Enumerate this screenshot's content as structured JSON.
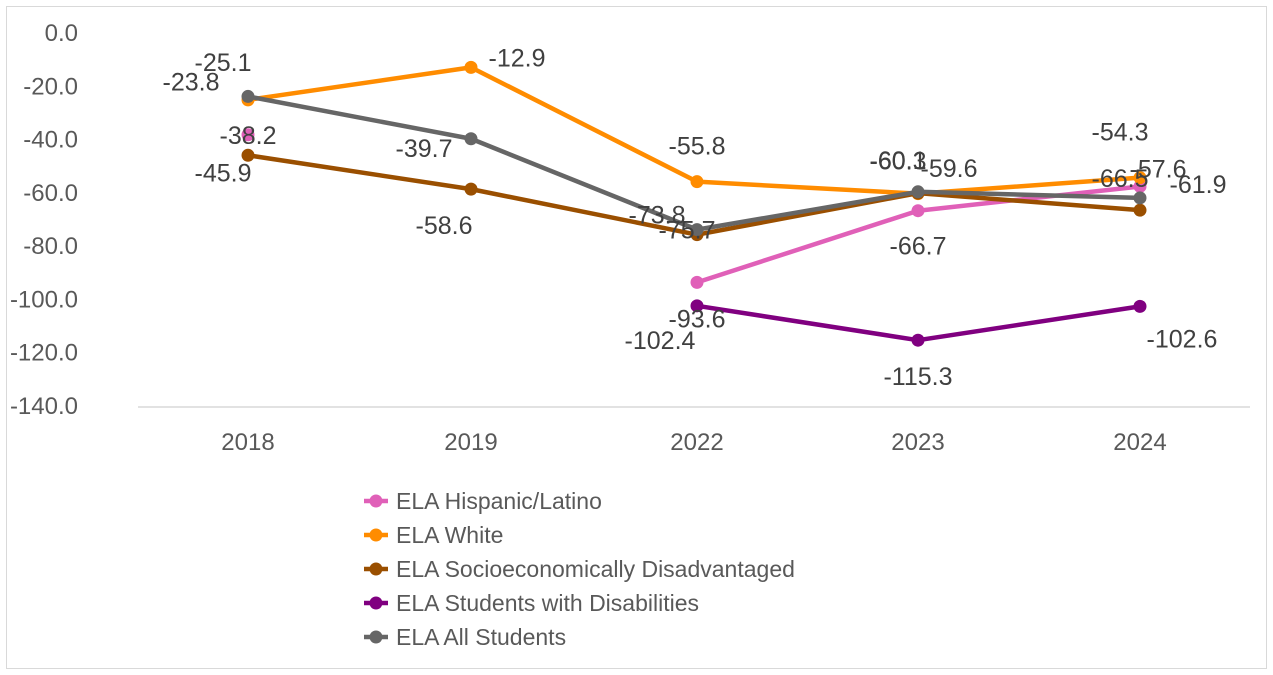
{
  "chart_data": {
    "type": "line",
    "title": "",
    "xlabel": "",
    "ylabel": "",
    "categories": [
      "2018",
      "2019",
      "2022",
      "2023",
      "2024"
    ],
    "ylim": [
      -140,
      0
    ],
    "yticks": [
      0,
      -20,
      -40,
      -60,
      -80,
      -100,
      -120,
      -140
    ],
    "ytick_labels": [
      "0.0",
      "-20.0",
      "-40.0",
      "-60.0",
      "-80.0",
      "-100.0",
      "-120.0",
      "-140.0"
    ],
    "grid": false,
    "legend_position": "bottom",
    "series": [
      {
        "name": "ELA Hispanic/Latino",
        "color": "#e060b8",
        "values": [
          -38.2,
          null,
          -93.6,
          -66.7,
          -57.6
        ],
        "labels": [
          "-38.2",
          null,
          "-93.6",
          "-66.7",
          "-57.6"
        ]
      },
      {
        "name": "ELA White",
        "color": "#ff8c00",
        "values": [
          -25.1,
          -12.9,
          -55.8,
          -60.3,
          -54.3
        ],
        "labels": [
          "-25.1",
          "-12.9",
          "-55.8",
          "-60.3",
          "-54.3"
        ]
      },
      {
        "name": "ELA Socioeconomically Disadvantaged",
        "color": "#9a4f00",
        "values": [
          -45.9,
          -58.6,
          -75.7,
          -60.1,
          -66.5
        ],
        "labels": [
          "-45.9",
          "-58.6",
          "-75.7",
          "-60.1",
          "-66.5"
        ]
      },
      {
        "name": "ELA Students with Disabilities",
        "color": "#800080",
        "values": [
          null,
          null,
          -102.4,
          -115.3,
          -102.6
        ],
        "labels": [
          null,
          null,
          "-102.4",
          "-115.3",
          "-102.6"
        ]
      },
      {
        "name": "ELA All Students",
        "color": "#666666",
        "values": [
          -23.8,
          -39.7,
          -73.8,
          -59.6,
          -61.9
        ],
        "labels": [
          "-23.8",
          "-39.7",
          "-73.8",
          "-59.6",
          "-61.9"
        ]
      }
    ]
  }
}
